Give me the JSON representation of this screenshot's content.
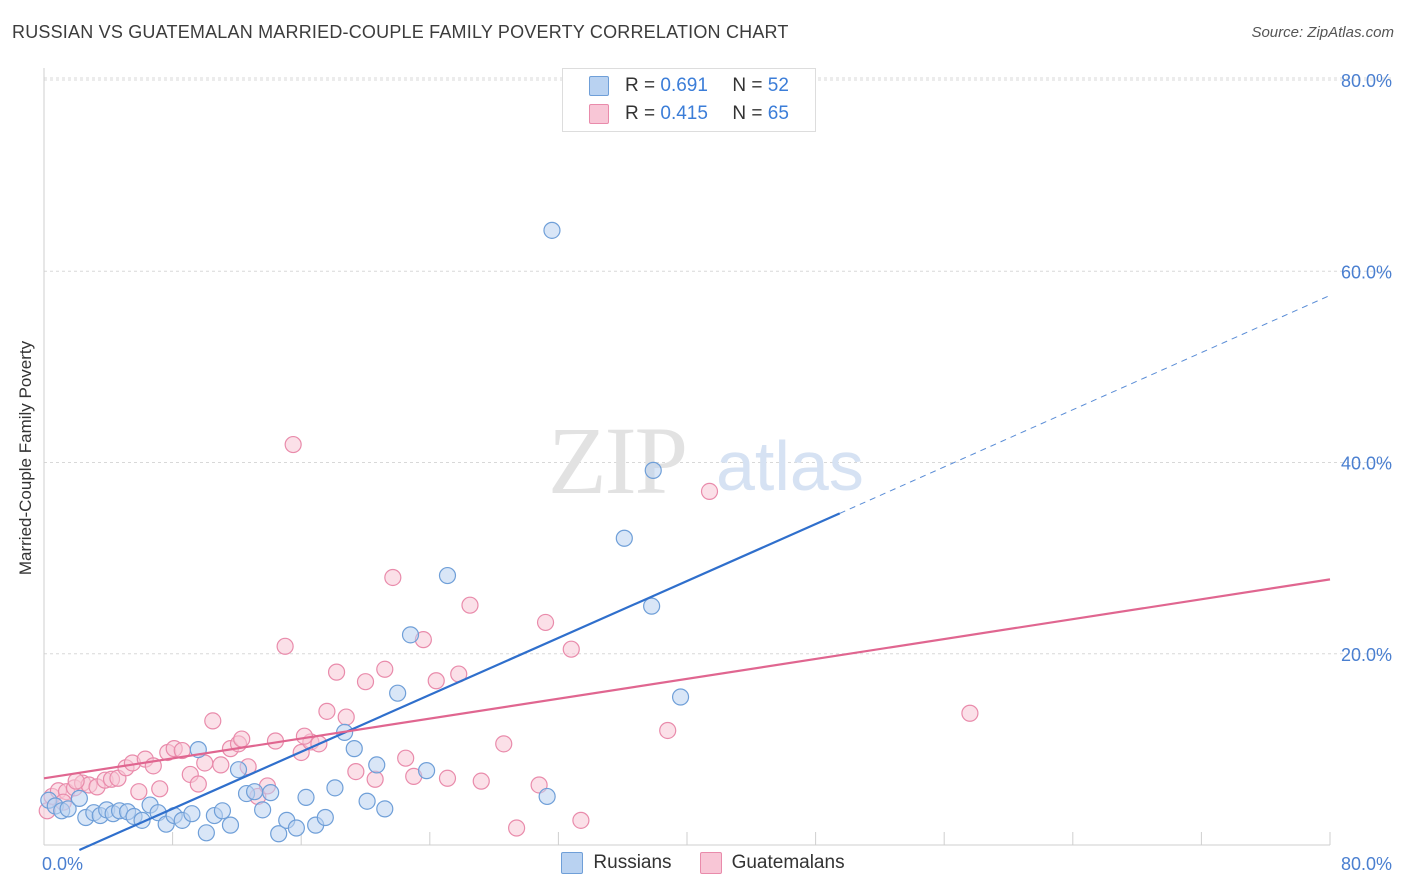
{
  "title": "RUSSIAN VS GUATEMALAN MARRIED-COUPLE FAMILY POVERTY CORRELATION CHART",
  "source": "Source: ZipAtlas.com",
  "watermark": {
    "zip": "ZIP",
    "atlas": "atlas"
  },
  "legend": {
    "russians": {
      "r_label": "R =",
      "r_value": "0.691",
      "n_label": "N =",
      "n_value": "52"
    },
    "guatemalans": {
      "r_label": "R =",
      "r_value": "0.415",
      "n_label": "N =",
      "n_value": "65"
    }
  },
  "colors": {
    "russians_fill": "#b9d2f1",
    "russians_stroke": "#6f9fd8",
    "russians_line": "#2f6fcc",
    "guatemalans_fill": "#f8c6d6",
    "guatemalans_stroke": "#e98bab",
    "guatemalans_line": "#e06690",
    "tick_text": "#4a7fd0",
    "grid": "#d8d8d8"
  },
  "chart_data": {
    "type": "scatter",
    "title": "RUSSIAN VS GUATEMALAN MARRIED-COUPLE FAMILY POVERTY CORRELATION CHART",
    "xlabel": "",
    "ylabel": "Married-Couple Family Poverty",
    "xlim": [
      0,
      80
    ],
    "ylim": [
      0,
      80
    ],
    "x_tick_labels": [
      "0.0%",
      "80.0%"
    ],
    "y_ticks": [
      20,
      40,
      60,
      80
    ],
    "y_tick_labels": [
      "20.0%",
      "40.0%",
      "60.0%",
      "80.0%"
    ],
    "grid": "horizontal dashed",
    "legend_position": "top-center and bottom",
    "series": [
      {
        "name": "Russians",
        "points": [
          [
            0.3,
            5.2
          ],
          [
            0.7,
            4.6
          ],
          [
            1.1,
            4.1
          ],
          [
            1.5,
            4.3
          ],
          [
            2.2,
            5.4
          ],
          [
            2.6,
            3.4
          ],
          [
            3.1,
            3.9
          ],
          [
            3.5,
            3.6
          ],
          [
            3.9,
            4.2
          ],
          [
            4.3,
            3.8
          ],
          [
            4.7,
            4.1
          ],
          [
            5.2,
            4.0
          ],
          [
            5.6,
            3.5
          ],
          [
            6.1,
            3.1
          ],
          [
            6.6,
            4.7
          ],
          [
            7.1,
            3.9
          ],
          [
            7.6,
            2.7
          ],
          [
            8.1,
            3.6
          ],
          [
            8.6,
            3.1
          ],
          [
            9.2,
            3.8
          ],
          [
            9.6,
            10.5
          ],
          [
            10.1,
            1.8
          ],
          [
            10.6,
            3.6
          ],
          [
            11.1,
            4.1
          ],
          [
            11.6,
            2.6
          ],
          [
            12.1,
            8.4
          ],
          [
            12.6,
            5.9
          ],
          [
            13.1,
            6.1
          ],
          [
            13.6,
            4.2
          ],
          [
            14.1,
            6.0
          ],
          [
            14.6,
            1.7
          ],
          [
            15.1,
            3.1
          ],
          [
            15.7,
            2.3
          ],
          [
            16.3,
            5.5
          ],
          [
            16.9,
            2.6
          ],
          [
            17.5,
            3.4
          ],
          [
            18.1,
            6.5
          ],
          [
            18.7,
            12.3
          ],
          [
            19.3,
            10.6
          ],
          [
            20.1,
            5.1
          ],
          [
            20.7,
            8.9
          ],
          [
            21.2,
            4.3
          ],
          [
            22.0,
            16.4
          ],
          [
            22.8,
            22.5
          ],
          [
            23.8,
            8.3
          ],
          [
            25.1,
            28.7
          ],
          [
            31.6,
            64.8
          ],
          [
            31.3,
            5.6
          ],
          [
            36.1,
            32.6
          ],
          [
            37.8,
            25.5
          ],
          [
            37.9,
            39.7
          ],
          [
            39.6,
            16.0
          ]
        ]
      },
      {
        "name": "Guatemalans",
        "points": [
          [
            0.2,
            4.1
          ],
          [
            0.5,
            5.6
          ],
          [
            0.9,
            6.2
          ],
          [
            1.4,
            6.1
          ],
          [
            1.9,
            6.5
          ],
          [
            2.4,
            7.0
          ],
          [
            2.8,
            6.8
          ],
          [
            3.3,
            6.6
          ],
          [
            3.8,
            7.3
          ],
          [
            4.2,
            7.4
          ],
          [
            4.6,
            7.5
          ],
          [
            5.1,
            8.6
          ],
          [
            5.5,
            9.1
          ],
          [
            5.9,
            6.1
          ],
          [
            6.3,
            9.5
          ],
          [
            6.8,
            8.8
          ],
          [
            7.2,
            6.4
          ],
          [
            7.7,
            10.2
          ],
          [
            8.1,
            10.6
          ],
          [
            8.6,
            10.4
          ],
          [
            9.1,
            7.9
          ],
          [
            9.6,
            6.9
          ],
          [
            10.0,
            9.1
          ],
          [
            10.5,
            13.5
          ],
          [
            11.0,
            8.9
          ],
          [
            11.6,
            10.6
          ],
          [
            12.1,
            11.1
          ],
          [
            12.7,
            8.7
          ],
          [
            13.3,
            5.6
          ],
          [
            13.9,
            6.7
          ],
          [
            14.4,
            11.4
          ],
          [
            15.0,
            21.3
          ],
          [
            15.5,
            42.4
          ],
          [
            16.0,
            10.2
          ],
          [
            16.6,
            11.3
          ],
          [
            17.1,
            11.1
          ],
          [
            17.6,
            14.5
          ],
          [
            18.2,
            18.6
          ],
          [
            18.8,
            13.9
          ],
          [
            19.4,
            8.2
          ],
          [
            20.0,
            17.6
          ],
          [
            20.6,
            7.4
          ],
          [
            21.2,
            18.9
          ],
          [
            21.7,
            28.5
          ],
          [
            22.5,
            9.6
          ],
          [
            23.0,
            7.7
          ],
          [
            23.6,
            22.0
          ],
          [
            24.4,
            17.7
          ],
          [
            25.1,
            7.5
          ],
          [
            25.8,
            18.4
          ],
          [
            26.5,
            25.6
          ],
          [
            27.2,
            7.2
          ],
          [
            28.6,
            11.1
          ],
          [
            29.4,
            2.3
          ],
          [
            30.8,
            6.8
          ],
          [
            31.2,
            23.8
          ],
          [
            32.8,
            21.0
          ],
          [
            33.4,
            3.1
          ],
          [
            38.8,
            12.5
          ],
          [
            41.4,
            37.5
          ],
          [
            57.6,
            14.3
          ],
          [
            1.2,
            5.0
          ],
          [
            2.0,
            7.2
          ],
          [
            12.3,
            11.6
          ],
          [
            16.2,
            11.9
          ]
        ]
      }
    ],
    "trendlines": [
      {
        "series": "Russians",
        "x_start": 2.2,
        "y_start": 0.0,
        "x_end": 49.5,
        "y_end": 35.2,
        "dashed_to_x": 80.0,
        "dashed_to_y": 58.0
      },
      {
        "series": "Guatemalans",
        "x_start": 0.0,
        "y_start": 7.5,
        "x_end": 80.0,
        "y_end": 28.3
      }
    ]
  }
}
